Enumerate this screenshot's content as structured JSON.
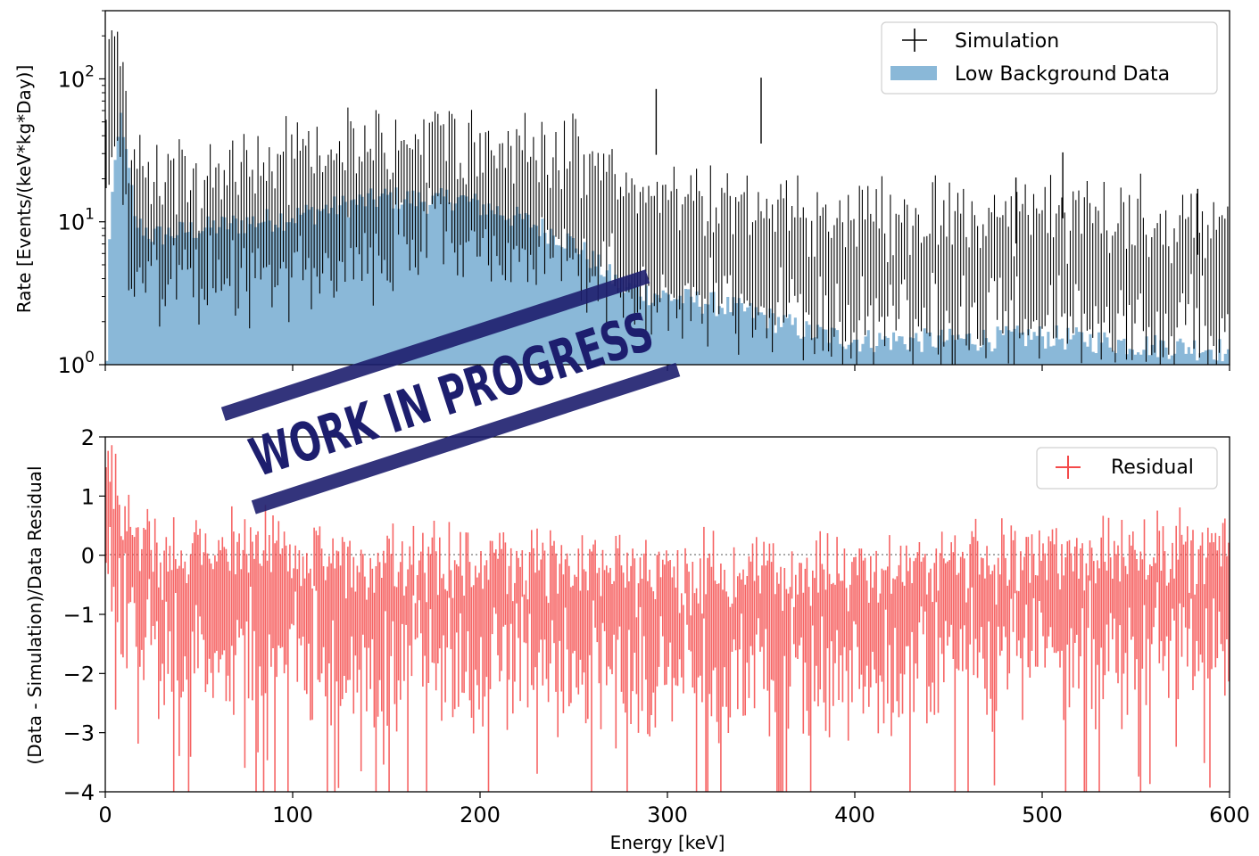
{
  "chart_data": [
    {
      "type": "histogram-errorbar",
      "xlim": [
        0,
        600
      ],
      "ylim": [
        1,
        300
      ],
      "yscale": "log",
      "ylabel": "Rate [Events/(keV*kg*Day)]",
      "yticks": [
        {
          "value": 1,
          "mantissa": "10",
          "exp": "0"
        },
        {
          "value": 10,
          "mantissa": "10",
          "exp": "1"
        },
        {
          "value": 100,
          "mantissa": "10",
          "exp": "2"
        }
      ],
      "grid": false,
      "legend_position": "top-right",
      "legend": {
        "simulation": "Simulation",
        "data": "Low Background Data"
      },
      "colors": {
        "data_fill": "#8ab8d8",
        "simulation": "#000000"
      },
      "data_envelope_x": [
        0,
        5,
        8,
        10,
        15,
        25,
        50,
        75,
        100,
        125,
        150,
        175,
        185,
        200,
        225,
        250,
        262,
        275,
        300,
        325,
        350,
        375,
        400,
        450,
        500,
        550,
        595,
        600
      ],
      "data_envelope_y": [
        1,
        25,
        60,
        30,
        10,
        8,
        9,
        10,
        11,
        13,
        15,
        14,
        15,
        13,
        10,
        7,
        5,
        3.5,
        3,
        2.7,
        2.2,
        1.7,
        1.5,
        1.5,
        1.6,
        1.4,
        1.3,
        1
      ],
      "sim_envelope_x": [
        0,
        3,
        6,
        9,
        12,
        20,
        50,
        80,
        100,
        130,
        160,
        185,
        200,
        230,
        260,
        290,
        320,
        350,
        400,
        450,
        500,
        550,
        600
      ],
      "sim_envelope_y": [
        4,
        150,
        120,
        60,
        15,
        11,
        10,
        12,
        14,
        17,
        19,
        21,
        19,
        17,
        12,
        8,
        7,
        6,
        6,
        5.5,
        5.5,
        5.5,
        5
      ],
      "peaks_x": [
        294,
        350,
        486,
        511,
        583
      ],
      "peaks_y": [
        50,
        60,
        12,
        18,
        10
      ]
    },
    {
      "type": "errorbar",
      "xlim": [
        0,
        600
      ],
      "ylim": [
        -4,
        2
      ],
      "xlabel": "Energy [keV]",
      "ylabel": "(Data - Simulation)/Data Residual",
      "xticks": [
        0,
        100,
        200,
        300,
        400,
        500,
        600
      ],
      "yticks": [
        {
          "value": 2,
          "label": "2"
        },
        {
          "value": 1,
          "label": "1"
        },
        {
          "value": 0,
          "label": "0"
        },
        {
          "value": -1,
          "label": "−1"
        },
        {
          "value": -2,
          "label": "−2"
        },
        {
          "value": -3,
          "label": "−3"
        },
        {
          "value": -4,
          "label": "−4"
        }
      ],
      "grid": false,
      "reference_line": 0,
      "legend_position": "top-right",
      "legend": {
        "residual": "Residual"
      },
      "colors": {
        "residual": "#f44a4a"
      },
      "trend_x": [
        0,
        5,
        15,
        30,
        50,
        80,
        100,
        150,
        200,
        250,
        300,
        400,
        500,
        550,
        600
      ],
      "trend_y": [
        1.0,
        0.8,
        0,
        -0.5,
        -0.3,
        -0.2,
        -0.4,
        -0.6,
        -0.5,
        -0.6,
        -0.7,
        -0.6,
        -0.5,
        -0.3,
        -0.3
      ]
    }
  ],
  "stamp": {
    "text": "WORK IN PROGRESS",
    "color": "#1d1e6e"
  }
}
